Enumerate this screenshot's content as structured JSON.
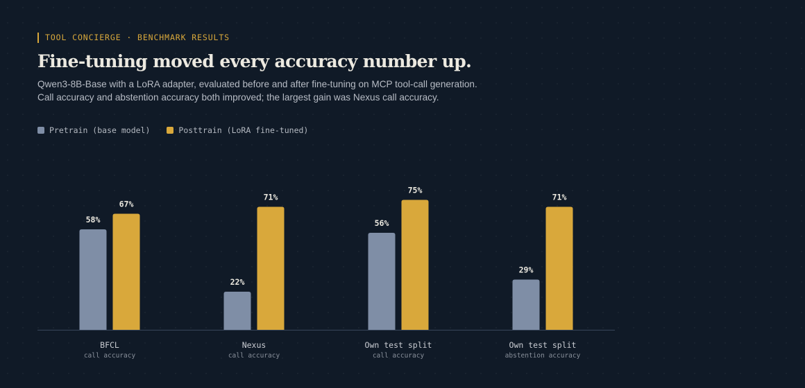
{
  "eyebrow": "TOOL CONCIERGE · BENCHMARK RESULTS",
  "headline": "Fine-tuning moved every accuracy number up.",
  "description": "Qwen3-8B-Base with a LoRA adapter, evaluated before and after fine-tuning on MCP tool-call generation. Call accuracy and abstention accuracy both improved; the largest gain was Nexus call accuracy.",
  "colors": {
    "background": "#101a27",
    "accent": "#d9a83b",
    "pretrain": "#7f8ea6",
    "posttrain": "#d9a83b",
    "axis": "#38465a"
  },
  "legend": [
    {
      "label": "Pretrain (base model)",
      "color": "#7f8ea6"
    },
    {
      "label": "Posttrain (LoRA fine-tuned)",
      "color": "#d9a83b"
    }
  ],
  "chart_data": {
    "type": "bar",
    "title": "Fine-tuning moved every accuracy number up.",
    "categories": [
      "BFCL",
      "Nexus",
      "Own test split",
      "Own test split"
    ],
    "category_sublabels": [
      "call accuracy",
      "call accuracy",
      "call accuracy",
      "abstention accuracy"
    ],
    "series": [
      {
        "name": "Pretrain (base model)",
        "values": [
          58,
          22,
          56,
          29
        ],
        "color": "#7f8ea6"
      },
      {
        "name": "Posttrain (LoRA fine-tuned)",
        "values": [
          67,
          71,
          75,
          71
        ],
        "color": "#d9a83b"
      }
    ],
    "value_suffix": "%",
    "ylim": [
      0,
      100
    ],
    "grid": false,
    "legend_position": "top-left"
  }
}
